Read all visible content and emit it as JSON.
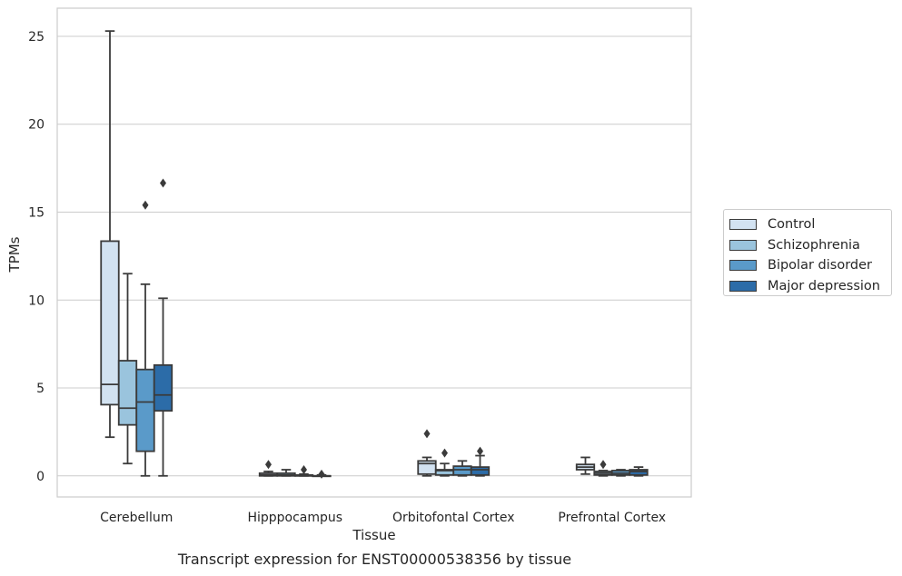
{
  "chart_data": {
    "type": "box",
    "xlabel": "Tissue",
    "ylabel": "TPMs",
    "caption": "Transcript expression for ENST00000538356 by tissue",
    "ylim": [
      -1.2,
      26.6
    ],
    "yticks": [
      0,
      5,
      10,
      15,
      20,
      25
    ],
    "grid": "horizontal",
    "legend_position": "right",
    "categories": [
      "Cerebellum",
      "Hipppocampus",
      "Orbitofontal Cortex",
      "Prefrontal Cortex"
    ],
    "series": [
      {
        "name": "Control",
        "color": "#d2e2f1",
        "boxes": [
          {
            "whislo": 2.2,
            "q1": 4.05,
            "med": 5.2,
            "q3": 13.35,
            "whishi": 25.3,
            "fliers": []
          },
          {
            "whislo": 0.0,
            "q1": 0.0,
            "med": 0.05,
            "q3": 0.15,
            "whishi": 0.25,
            "fliers": [
              0.65
            ]
          },
          {
            "whislo": 0.0,
            "q1": 0.1,
            "med": 0.7,
            "q3": 0.85,
            "whishi": 1.05,
            "fliers": [
              2.4
            ]
          },
          {
            "whislo": 0.1,
            "q1": 0.35,
            "med": 0.5,
            "q3": 0.65,
            "whishi": 1.05,
            "fliers": []
          }
        ]
      },
      {
        "name": "Schizophrenia",
        "color": "#9ac4dd",
        "boxes": [
          {
            "whislo": 0.7,
            "q1": 2.9,
            "med": 3.85,
            "q3": 6.55,
            "whishi": 11.5,
            "fliers": []
          },
          {
            "whislo": 0.0,
            "q1": 0.0,
            "med": 0.05,
            "q3": 0.15,
            "whishi": 0.35,
            "fliers": []
          },
          {
            "whislo": 0.0,
            "q1": 0.05,
            "med": 0.3,
            "q3": 0.35,
            "whishi": 0.7,
            "fliers": [
              1.3
            ]
          },
          {
            "whislo": 0.0,
            "q1": 0.05,
            "med": 0.15,
            "q3": 0.25,
            "whishi": 0.3,
            "fliers": [
              0.65
            ]
          }
        ]
      },
      {
        "name": "Bipolar disorder",
        "color": "#5a9ac9",
        "boxes": [
          {
            "whislo": 0.0,
            "q1": 1.4,
            "med": 4.2,
            "q3": 6.05,
            "whishi": 10.9,
            "fliers": [
              15.4
            ]
          },
          {
            "whislo": 0.0,
            "q1": 0.0,
            "med": 0.0,
            "q3": 0.05,
            "whishi": 0.1,
            "fliers": [
              0.35
            ]
          },
          {
            "whislo": 0.0,
            "q1": 0.05,
            "med": 0.35,
            "q3": 0.55,
            "whishi": 0.85,
            "fliers": []
          },
          {
            "whislo": 0.0,
            "q1": 0.05,
            "med": 0.15,
            "q3": 0.3,
            "whishi": 0.35,
            "fliers": []
          }
        ]
      },
      {
        "name": "Major depression",
        "color": "#2c6ca8",
        "boxes": [
          {
            "whislo": 0.0,
            "q1": 3.7,
            "med": 4.6,
            "q3": 6.3,
            "whishi": 10.1,
            "fliers": [
              16.65
            ]
          },
          {
            "whislo": 0.0,
            "q1": 0.0,
            "med": 0.0,
            "q3": 0.0,
            "whishi": 0.05,
            "fliers": [
              0.1
            ]
          },
          {
            "whislo": 0.0,
            "q1": 0.05,
            "med": 0.35,
            "q3": 0.5,
            "whishi": 1.15,
            "fliers": [
              1.4
            ]
          },
          {
            "whislo": 0.0,
            "q1": 0.05,
            "med": 0.25,
            "q3": 0.35,
            "whishi": 0.5,
            "fliers": []
          }
        ]
      }
    ]
  }
}
